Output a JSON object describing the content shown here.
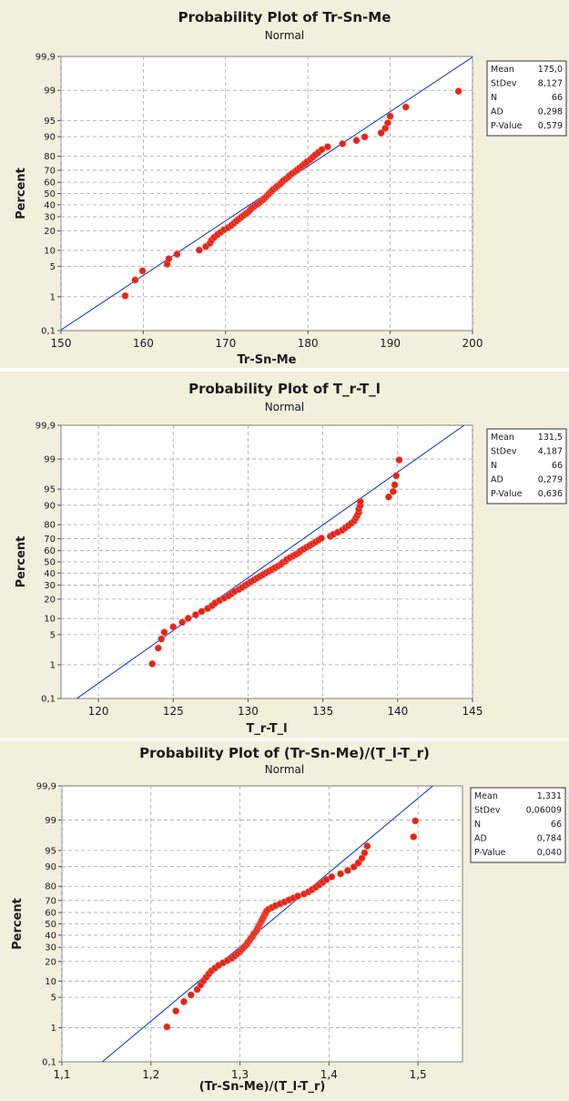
{
  "chart_data": [
    {
      "type": "scatter",
      "title": "Probability Plot of Tr-Sn-Me",
      "subtitle": "Normal",
      "xlabel": "Tr-Sn-Me",
      "ylabel": "Percent",
      "xlim": [
        150,
        200
      ],
      "x_ticks": [
        "150",
        "160",
        "170",
        "180",
        "190",
        "200"
      ],
      "y_scale": "normal-probability",
      "y_ticks": [
        "0,1",
        "1",
        "5",
        "10",
        "20",
        "30",
        "40",
        "50",
        "60",
        "70",
        "80",
        "90",
        "95",
        "99",
        "99,9"
      ],
      "fit_line": {
        "mean": 175.0,
        "stdev": 8.127
      },
      "stats": [
        {
          "label": "Mean",
          "value": "175,0"
        },
        {
          "label": "StDev",
          "value": "8,127"
        },
        {
          "label": "N",
          "value": "66"
        },
        {
          "label": "AD",
          "value": "0,298"
        },
        {
          "label": "P-Value",
          "value": "0,579"
        }
      ],
      "point_color": "#e0261b",
      "line_color": "#2b4fc9",
      "grid": true,
      "legend": "right",
      "n": 66,
      "x": [
        157.8,
        159.0,
        159.9,
        162.9,
        163.1,
        164.1,
        166.8,
        167.6,
        168.1,
        168.3,
        168.6,
        169.0,
        169.4,
        169.8,
        170.3,
        170.7,
        171.0,
        171.3,
        171.6,
        171.9,
        172.2,
        172.5,
        172.8,
        173.0,
        173.2,
        173.5,
        173.8,
        174.1,
        174.3,
        174.6,
        174.8,
        175.0,
        175.2,
        175.4,
        175.6,
        175.8,
        176.1,
        176.3,
        176.6,
        176.8,
        177.0,
        177.3,
        177.6,
        177.8,
        178.1,
        178.4,
        178.7,
        179.0,
        179.3,
        179.6,
        179.9,
        180.3,
        180.6,
        180.9,
        181.3,
        181.7,
        182.4,
        184.2,
        185.9,
        186.9,
        188.9,
        189.4,
        189.7,
        190.0,
        191.9,
        198.3
      ]
    },
    {
      "type": "scatter",
      "title": "Probability Plot of T_r-T_l",
      "subtitle": "Normal",
      "xlabel": "T_r-T_l",
      "ylabel": "Percent",
      "xlim": [
        117.5,
        145
      ],
      "x_ticks": [
        "120",
        "125",
        "130",
        "135",
        "140",
        "145"
      ],
      "y_scale": "normal-probability",
      "y_ticks": [
        "0,1",
        "1",
        "5",
        "10",
        "20",
        "30",
        "40",
        "50",
        "60",
        "70",
        "80",
        "90",
        "95",
        "99",
        "99,9"
      ],
      "fit_line": {
        "mean": 131.5,
        "stdev": 4.187
      },
      "stats": [
        {
          "label": "Mean",
          "value": "131,5"
        },
        {
          "label": "StDev",
          "value": "4,187"
        },
        {
          "label": "N",
          "value": "66"
        },
        {
          "label": "AD",
          "value": "0,279"
        },
        {
          "label": "P-Value",
          "value": "0,636"
        }
      ],
      "point_color": "#e0261b",
      "line_color": "#2b4fc9",
      "grid": true,
      "legend": "right",
      "n": 66,
      "x": [
        123.6,
        124.0,
        124.2,
        124.4,
        125.0,
        125.6,
        126.0,
        126.5,
        126.9,
        127.3,
        127.6,
        127.8,
        128.1,
        128.4,
        128.7,
        128.9,
        129.1,
        129.4,
        129.6,
        129.8,
        130.0,
        130.2,
        130.4,
        130.6,
        130.8,
        131.0,
        131.2,
        131.4,
        131.6,
        131.8,
        132.0,
        132.2,
        132.3,
        132.5,
        132.6,
        132.8,
        133.0,
        133.2,
        133.4,
        133.5,
        133.7,
        133.9,
        134.1,
        134.3,
        134.5,
        134.7,
        134.9,
        135.5,
        135.7,
        136.0,
        136.3,
        136.5,
        136.7,
        136.9,
        137.1,
        137.2,
        137.3,
        137.4,
        137.4,
        137.5,
        137.5,
        139.4,
        139.7,
        139.8,
        139.9,
        140.1
      ]
    },
    {
      "type": "scatter",
      "title": "Probability Plot of (Tr-Sn-Me)/(T_l-T_r)",
      "subtitle": "Normal",
      "xlabel": "(Tr-Sn-Me)/(T_l-T_r)",
      "ylabel": "Percent",
      "xlim": [
        1.1,
        1.55
      ],
      "x_ticks": [
        "1,1",
        "1,2",
        "1,3",
        "1,4",
        "1,5"
      ],
      "y_scale": "normal-probability",
      "y_ticks": [
        "0,1",
        "1",
        "5",
        "10",
        "20",
        "30",
        "40",
        "50",
        "60",
        "70",
        "80",
        "90",
        "95",
        "99",
        "99,9"
      ],
      "fit_line": {
        "mean": 1.331,
        "stdev": 0.06009
      },
      "stats": [
        {
          "label": "Mean",
          "value": "1,331"
        },
        {
          "label": "StDev",
          "value": "0,06009"
        },
        {
          "label": "N",
          "value": "66"
        },
        {
          "label": "AD",
          "value": "0,784"
        },
        {
          "label": "P-Value",
          "value": "0,040"
        }
      ],
      "point_color": "#e0261b",
      "line_color": "#2b4fc9",
      "grid": true,
      "legend": "right",
      "n": 66,
      "x": [
        1.218,
        1.228,
        1.237,
        1.245,
        1.252,
        1.256,
        1.259,
        1.262,
        1.265,
        1.268,
        1.272,
        1.276,
        1.281,
        1.286,
        1.291,
        1.294,
        1.297,
        1.3,
        1.302,
        1.304,
        1.306,
        1.308,
        1.309,
        1.311,
        1.312,
        1.314,
        1.315,
        1.316,
        1.318,
        1.319,
        1.32,
        1.321,
        1.322,
        1.323,
        1.324,
        1.325,
        1.326,
        1.327,
        1.328,
        1.329,
        1.33,
        1.332,
        1.336,
        1.34,
        1.345,
        1.35,
        1.355,
        1.36,
        1.365,
        1.372,
        1.377,
        1.381,
        1.385,
        1.389,
        1.393,
        1.397,
        1.403,
        1.413,
        1.421,
        1.428,
        1.433,
        1.437,
        1.44,
        1.443,
        1.495,
        1.497
      ]
    }
  ]
}
